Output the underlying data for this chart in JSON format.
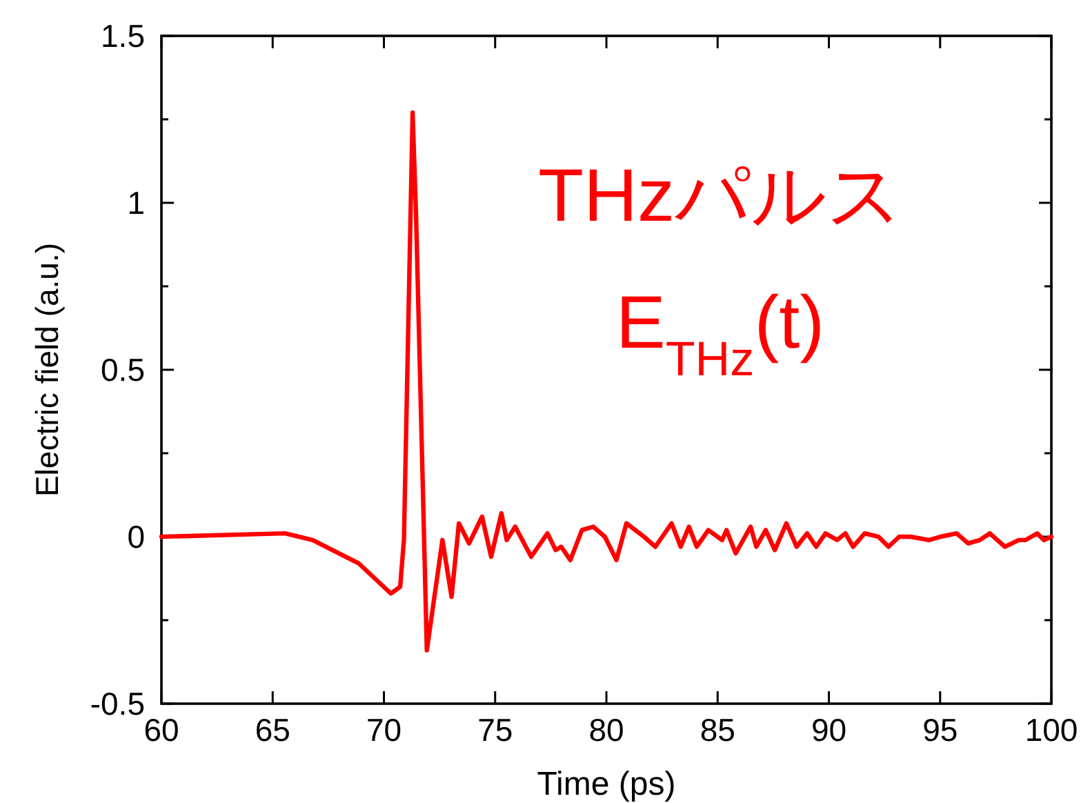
{
  "chart_data": {
    "type": "line",
    "xlabel": "Time (ps)",
    "ylabel": "Electric field (a.u.)",
    "annotations": [
      "THzパルス",
      "E$_{THz}$(t)"
    ],
    "xlim": [
      60,
      100
    ],
    "xticks": [
      60,
      65,
      70,
      75,
      80,
      85,
      90,
      95,
      100
    ],
    "ylim": [
      -0.5,
      1.5
    ],
    "yticks": [
      -0.5,
      {
        "value": -0.25,
        "label": null
      },
      0,
      {
        "value": 0.25,
        "label": null
      },
      0.5,
      {
        "value": 0.75,
        "label": null
      },
      1,
      {
        "value": 1.25,
        "label": null
      },
      1.5
    ],
    "grid": false,
    "marker": "none",
    "line_style": "solid",
    "series": [
      {
        "color": "#ff0000",
        "x": [
          60,
          65.56,
          66.8,
          68.87,
          70.31,
          70.73,
          70.9,
          71.29,
          71.45,
          71.93,
          72.63,
          73.04,
          73.37,
          73.83,
          74.41,
          74.82,
          75.28,
          75.52,
          75.9,
          76.62,
          77.35,
          77.72,
          77.97,
          78.38,
          78.9,
          79.41,
          79.93,
          80.45,
          80.9,
          81.69,
          82.2,
          82.93,
          83.34,
          83.71,
          84.06,
          84.58,
          85.2,
          85.4,
          85.81,
          86.48,
          86.74,
          87.16,
          87.57,
          88.09,
          88.55,
          89.02,
          89.43,
          89.85,
          90.37,
          90.74,
          91.09,
          91.61,
          92.23,
          92.68,
          93.16,
          93.67,
          94.5,
          95.02,
          95.74,
          96.26,
          96.78,
          97.23,
          97.91,
          98.53,
          98.84,
          99.36,
          99.67,
          100
        ],
        "values": [
          0,
          0.01,
          -0.01,
          -0.08,
          -0.17,
          -0.15,
          -0.01,
          1.27,
          0.95,
          -0.34,
          -0.01,
          -0.18,
          0.04,
          -0.02,
          0.06,
          -0.06,
          0.07,
          -0.01,
          0.03,
          -0.06,
          0.01,
          -0.04,
          -0.03,
          -0.07,
          0.02,
          0.03,
          0,
          -0.07,
          0.04,
          0,
          -0.03,
          0.04,
          -0.03,
          0.03,
          -0.03,
          0.02,
          -0.01,
          0.02,
          -0.05,
          0.03,
          -0.03,
          0.02,
          -0.04,
          0.04,
          -0.03,
          0.01,
          -0.03,
          0.01,
          -0.01,
          0.01,
          -0.03,
          0.01,
          0,
          -0.03,
          0,
          0,
          -0.01,
          0,
          0.01,
          -0.02,
          -0.01,
          0.01,
          -0.03,
          -0.01,
          -0.01,
          0.01,
          -0.01,
          0
        ]
      }
    ]
  }
}
